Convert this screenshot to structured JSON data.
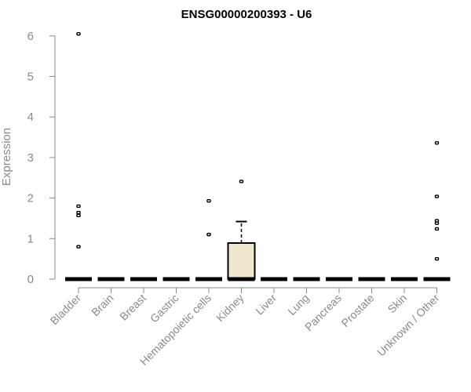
{
  "chart_data": {
    "type": "box",
    "title": "ENSG00000200393 - U6",
    "xlabel": "",
    "ylabel": "Expression",
    "ylim": [
      0,
      6.2
    ],
    "yticks": [
      0,
      1,
      2,
      3,
      4,
      5,
      6
    ],
    "grid": false,
    "colors": {
      "box_fill": "#efe8cf",
      "box_stroke": "#000000",
      "axis": "#8a8a8a"
    },
    "categories": [
      "Bladder",
      "Brain",
      "Breast",
      "Gastric",
      "Hematopoietic cells",
      "Kidney",
      "Liver",
      "Lung",
      "Pancreas",
      "Prostate",
      "Skin",
      "Unknown / Other"
    ],
    "boxes": [
      {
        "q1": 0,
        "median": 0,
        "q3": 0,
        "whisker_low": 0,
        "whisker_high": 0,
        "outliers": [
          0.8,
          1.57,
          1.64,
          1.8,
          6.05
        ]
      },
      {
        "q1": 0,
        "median": 0,
        "q3": 0,
        "whisker_low": 0,
        "whisker_high": 0,
        "outliers": []
      },
      {
        "q1": 0,
        "median": 0,
        "q3": 0,
        "whisker_low": 0,
        "whisker_high": 0,
        "outliers": []
      },
      {
        "q1": 0,
        "median": 0,
        "q3": 0,
        "whisker_low": 0,
        "whisker_high": 0,
        "outliers": []
      },
      {
        "q1": 0,
        "median": 0,
        "q3": 0,
        "whisker_low": 0,
        "whisker_high": 0,
        "outliers": [
          1.1,
          1.93
        ]
      },
      {
        "q1": 0,
        "median": 0,
        "q3": 0.89,
        "whisker_low": 0,
        "whisker_high": 1.42,
        "outliers": [
          2.41
        ]
      },
      {
        "q1": 0,
        "median": 0,
        "q3": 0,
        "whisker_low": 0,
        "whisker_high": 0,
        "outliers": []
      },
      {
        "q1": 0,
        "median": 0,
        "q3": 0,
        "whisker_low": 0,
        "whisker_high": 0,
        "outliers": []
      },
      {
        "q1": 0,
        "median": 0,
        "q3": 0,
        "whisker_low": 0,
        "whisker_high": 0,
        "outliers": []
      },
      {
        "q1": 0,
        "median": 0,
        "q3": 0,
        "whisker_low": 0,
        "whisker_high": 0,
        "outliers": []
      },
      {
        "q1": 0,
        "median": 0,
        "q3": 0,
        "whisker_low": 0,
        "whisker_high": 0,
        "outliers": []
      },
      {
        "q1": 0,
        "median": 0,
        "q3": 0,
        "whisker_low": 0,
        "whisker_high": 0,
        "outliers": [
          0.5,
          1.24,
          1.38,
          1.44,
          2.04,
          3.36
        ]
      }
    ]
  }
}
